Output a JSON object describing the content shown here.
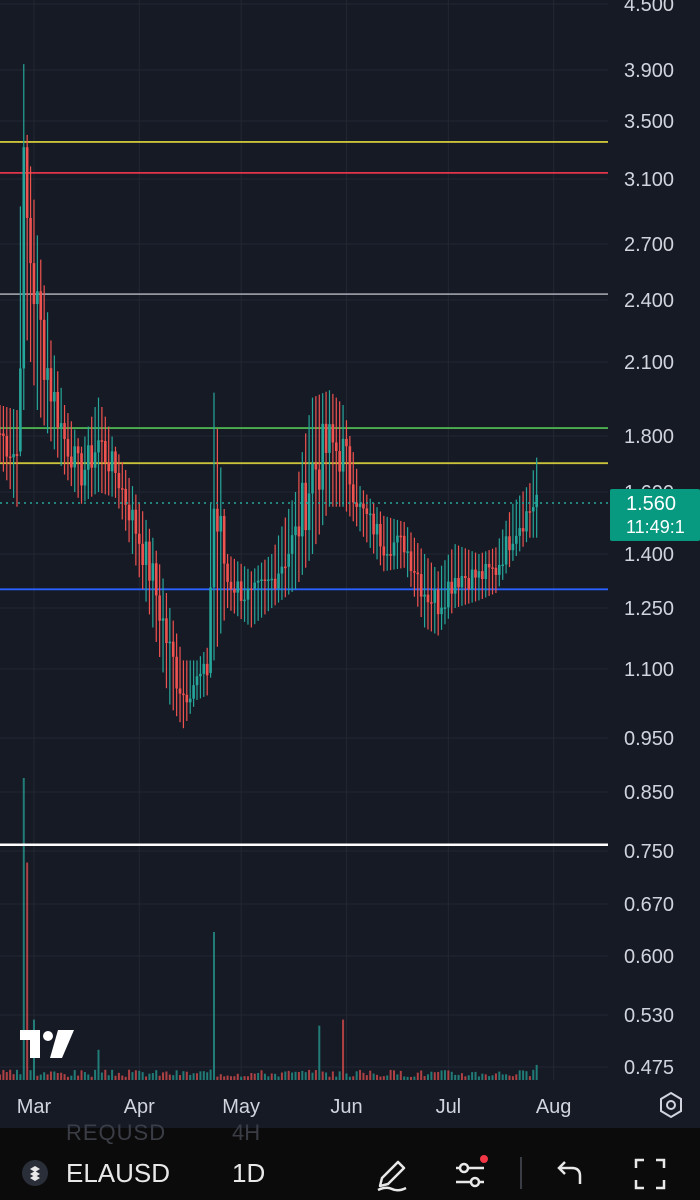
{
  "chart_data": {
    "type": "candlestick",
    "title": "",
    "y_axis": {
      "ticks": [
        "4.500",
        "3.900",
        "3.500",
        "3.100",
        "2.700",
        "2.400",
        "2.100",
        "1.800",
        "1.600",
        "1.400",
        "1.250",
        "1.100",
        "0.950",
        "0.850",
        "0.750",
        "0.670",
        "0.600",
        "0.530",
        "0.475"
      ],
      "scale": "log",
      "range": [
        0.46,
        4.6
      ]
    },
    "x_axis": {
      "ticks": [
        "Mar",
        "Apr",
        "May",
        "Jun",
        "Jul",
        "Aug"
      ],
      "range": [
        "2024-02-20",
        "2024-08-17"
      ]
    },
    "last_price": "1.560",
    "countdown": "11:49:1",
    "horizontal_lines": [
      {
        "price": 3.35,
        "color": "#c9c23a"
      },
      {
        "price": 3.14,
        "color": "#e0354b"
      },
      {
        "price": 2.43,
        "color": "#9598a1"
      },
      {
        "price": 1.83,
        "color": "#4caf50"
      },
      {
        "price": 1.7,
        "color": "#c9c23a"
      },
      {
        "price": 1.3,
        "color": "#2962ff"
      },
      {
        "price": 0.76,
        "color": "#ffffff"
      }
    ],
    "series": [
      {
        "kind": "price",
        "points": [
          {
            "date": "2024-02-20",
            "high": 1.92,
            "low": 1.7
          },
          {
            "date": "2024-02-25",
            "high": 1.9,
            "low": 1.55
          },
          {
            "date": "2024-02-27",
            "high": 3.95,
            "low": 1.9
          },
          {
            "date": "2024-02-28",
            "high": 3.4,
            "low": 2.2
          },
          {
            "date": "2024-03-02",
            "high": 2.75,
            "low": 1.9
          },
          {
            "date": "2024-03-06",
            "high": 2.2,
            "low": 1.78
          },
          {
            "date": "2024-03-10",
            "high": 1.92,
            "low": 1.66
          },
          {
            "date": "2024-03-15",
            "high": 1.76,
            "low": 1.56
          },
          {
            "date": "2024-03-20",
            "high": 1.95,
            "low": 1.6
          },
          {
            "date": "2024-03-25",
            "high": 1.76,
            "low": 1.58
          },
          {
            "date": "2024-03-30",
            "high": 1.62,
            "low": 1.4
          },
          {
            "date": "2024-04-05",
            "high": 1.45,
            "low": 1.2
          },
          {
            "date": "2024-04-10",
            "high": 1.25,
            "low": 1.02
          },
          {
            "date": "2024-04-14",
            "high": 1.12,
            "low": 0.97
          },
          {
            "date": "2024-04-18",
            "high": 1.12,
            "low": 1.03
          },
          {
            "date": "2024-04-21",
            "high": 1.15,
            "low": 1.04
          },
          {
            "date": "2024-04-23",
            "high": 1.97,
            "low": 1.12
          },
          {
            "date": "2024-04-27",
            "high": 1.4,
            "low": 1.25
          },
          {
            "date": "2024-05-04",
            "high": 1.35,
            "low": 1.2
          },
          {
            "date": "2024-05-10",
            "high": 1.4,
            "low": 1.25
          },
          {
            "date": "2024-05-17",
            "high": 1.6,
            "low": 1.3
          },
          {
            "date": "2024-05-22",
            "high": 1.95,
            "low": 1.4
          },
          {
            "date": "2024-05-27",
            "high": 1.98,
            "low": 1.55
          },
          {
            "date": "2024-05-31",
            "high": 1.92,
            "low": 1.55
          },
          {
            "date": "2024-06-05",
            "high": 1.62,
            "low": 1.47
          },
          {
            "date": "2024-06-12",
            "high": 1.52,
            "low": 1.35
          },
          {
            "date": "2024-06-18",
            "high": 1.5,
            "low": 1.36
          },
          {
            "date": "2024-06-24",
            "high": 1.4,
            "low": 1.2
          },
          {
            "date": "2024-06-28",
            "high": 1.35,
            "low": 1.18
          },
          {
            "date": "2024-07-03",
            "high": 1.43,
            "low": 1.25
          },
          {
            "date": "2024-07-10",
            "high": 1.4,
            "low": 1.27
          },
          {
            "date": "2024-07-15",
            "high": 1.42,
            "low": 1.29
          },
          {
            "date": "2024-07-20",
            "high": 1.56,
            "low": 1.38
          },
          {
            "date": "2024-07-25",
            "high": 1.63,
            "low": 1.45
          },
          {
            "date": "2024-07-27",
            "high": 1.72,
            "low": 1.45
          }
        ]
      },
      {
        "kind": "volume",
        "points": [
          {
            "date": "2024-02-27",
            "volume": 100
          },
          {
            "date": "2024-02-28",
            "volume": 72
          },
          {
            "date": "2024-03-01",
            "volume": 20
          },
          {
            "date": "2024-03-20",
            "volume": 10
          },
          {
            "date": "2024-04-23",
            "volume": 49
          },
          {
            "date": "2024-05-24",
            "volume": 18
          },
          {
            "date": "2024-05-31",
            "volume": 20
          },
          {
            "date": "2024-07-27",
            "volume": 5
          }
        ]
      }
    ]
  },
  "ui": {
    "symbol": "ELAUSD",
    "interval": "1D",
    "ghost_symbol": "REQUSD",
    "ghost_interval": "4H",
    "icons": [
      "tradingview-logo",
      "chart-settings-icon",
      "symbol-icon",
      "drawing-pen-icon",
      "indicator-settings-icon",
      "undo-icon",
      "fullscreen-icon"
    ],
    "colors": {
      "up": "#26a69a",
      "down": "#ef5350",
      "accent": "#089981",
      "notification": "#f23645"
    }
  }
}
